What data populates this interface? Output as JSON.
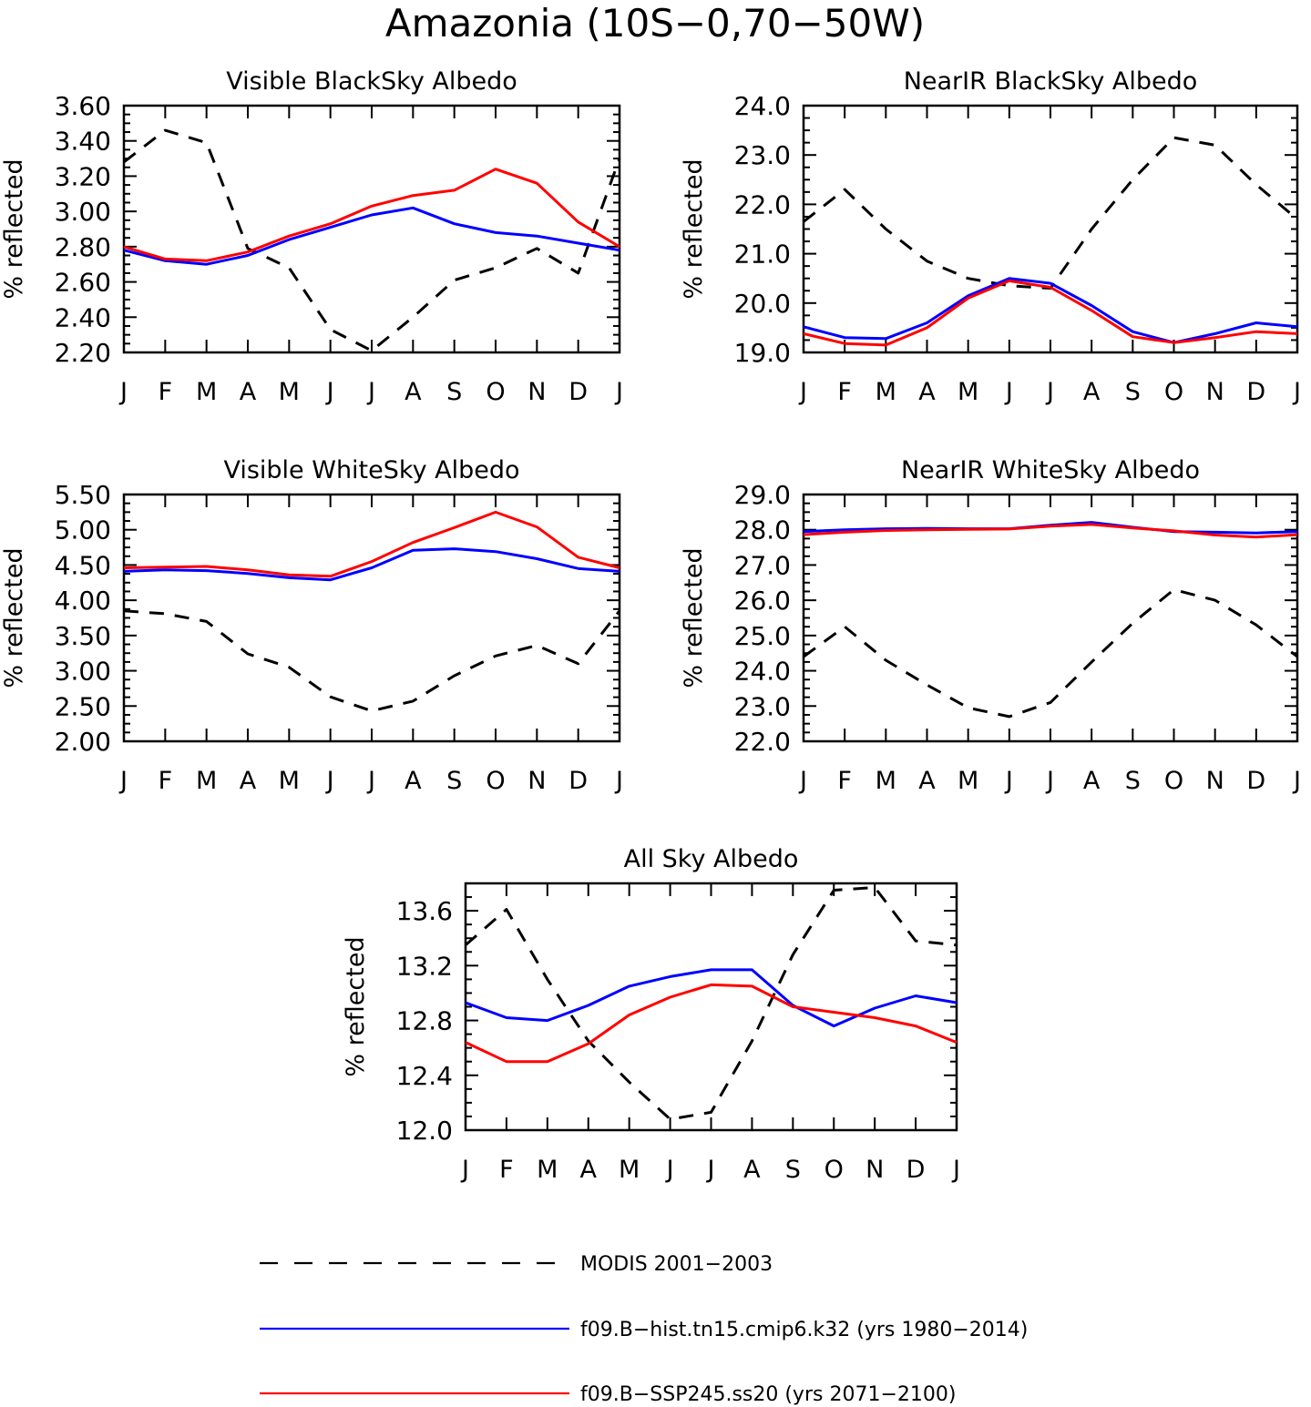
{
  "figure": {
    "title": "Amazonia (10S−0,70−50W)"
  },
  "legend": [
    {
      "label": "MODIS 2001−2003",
      "color": "#000000",
      "dashed": true
    },
    {
      "label": "f09.B−hist.tn15.cmip6.k32 (yrs 1980−2014)",
      "color": "#0000ff",
      "dashed": false
    },
    {
      "label": "f09.B−SSP245.ss20 (yrs 2071−2100)",
      "color": "#ff0000",
      "dashed": false
    }
  ],
  "chart_data": [
    {
      "type": "line",
      "title": "Visible BlackSky Albedo",
      "ylabel": "% reflected",
      "ylim": [
        2.2,
        3.6
      ],
      "yticks": [
        "2.20",
        "2.40",
        "2.60",
        "2.80",
        "3.00",
        "3.20",
        "3.40",
        "3.60"
      ],
      "categories": [
        "J",
        "F",
        "M",
        "A",
        "M",
        "J",
        "J",
        "A",
        "S",
        "O",
        "N",
        "D",
        "J"
      ],
      "series": [
        {
          "name": "MODIS 2001−2003",
          "values": [
            3.28,
            3.46,
            3.39,
            2.79,
            2.68,
            2.33,
            2.21,
            2.4,
            2.61,
            2.68,
            2.79,
            2.65,
            3.3
          ]
        },
        {
          "name": "f09.B−hist.tn15.cmip6.k32 (yrs 1980−2014)",
          "values": [
            2.78,
            2.72,
            2.7,
            2.75,
            2.84,
            2.91,
            2.98,
            3.02,
            2.93,
            2.88,
            2.86,
            2.82,
            2.78
          ]
        },
        {
          "name": "f09.B−SSP245.ss20 (yrs 2071−2100)",
          "values": [
            2.8,
            2.73,
            2.72,
            2.77,
            2.86,
            2.93,
            3.03,
            3.09,
            3.12,
            3.24,
            3.16,
            2.94,
            2.8
          ]
        }
      ]
    },
    {
      "type": "line",
      "title": "NearIR BlackSky Albedo",
      "ylabel": "% reflected",
      "ylim": [
        19.0,
        24.0
      ],
      "yticks": [
        "19.0",
        "20.0",
        "21.0",
        "22.0",
        "23.0",
        "24.0"
      ],
      "categories": [
        "J",
        "F",
        "M",
        "A",
        "M",
        "J",
        "J",
        "A",
        "S",
        "O",
        "N",
        "D",
        "J"
      ],
      "series": [
        {
          "name": "MODIS 2001−2003",
          "values": [
            21.65,
            22.3,
            21.5,
            20.85,
            20.5,
            20.35,
            20.3,
            21.5,
            22.5,
            23.35,
            23.2,
            22.4,
            21.7
          ]
        },
        {
          "name": "f09.B−hist.tn15.cmip6.k32 (yrs 1980−2014)",
          "values": [
            19.52,
            19.3,
            19.28,
            19.6,
            20.15,
            20.5,
            20.4,
            19.95,
            19.42,
            19.2,
            19.38,
            19.6,
            19.52
          ]
        },
        {
          "name": "f09.B−SSP245.ss20 (yrs 2071−2100)",
          "values": [
            19.38,
            19.18,
            19.15,
            19.5,
            20.1,
            20.45,
            20.32,
            19.85,
            19.32,
            19.2,
            19.3,
            19.42,
            19.38
          ]
        }
      ]
    },
    {
      "type": "line",
      "title": "Visible WhiteSky Albedo",
      "ylabel": "% reflected",
      "ylim": [
        2.0,
        5.5
      ],
      "yticks": [
        "2.00",
        "2.50",
        "3.00",
        "3.50",
        "4.00",
        "4.50",
        "5.00",
        "5.50"
      ],
      "categories": [
        "J",
        "F",
        "M",
        "A",
        "M",
        "J",
        "J",
        "A",
        "S",
        "O",
        "N",
        "D",
        "J"
      ],
      "series": [
        {
          "name": "MODIS 2001−2003",
          "values": [
            3.85,
            3.81,
            3.7,
            3.24,
            3.05,
            2.63,
            2.43,
            2.57,
            2.93,
            3.21,
            3.36,
            3.1,
            3.85
          ]
        },
        {
          "name": "f09.B−hist.tn15.cmip6.k32 (yrs 1980−2014)",
          "values": [
            4.41,
            4.43,
            4.42,
            4.38,
            4.32,
            4.29,
            4.46,
            4.71,
            4.73,
            4.69,
            4.59,
            4.45,
            4.41
          ]
        },
        {
          "name": "f09.B−SSP245.ss20 (yrs 2071−2100)",
          "values": [
            4.46,
            4.47,
            4.48,
            4.43,
            4.36,
            4.34,
            4.55,
            4.82,
            5.03,
            5.25,
            5.04,
            4.61,
            4.46
          ]
        }
      ]
    },
    {
      "type": "line",
      "title": "NearIR WhiteSky Albedo",
      "ylabel": "% reflected",
      "ylim": [
        22.0,
        29.0
      ],
      "yticks": [
        "22.0",
        "23.0",
        "24.0",
        "25.0",
        "26.0",
        "27.0",
        "28.0",
        "29.0"
      ],
      "categories": [
        "J",
        "F",
        "M",
        "A",
        "M",
        "J",
        "J",
        "A",
        "S",
        "O",
        "N",
        "D",
        "J"
      ],
      "series": [
        {
          "name": "MODIS 2001−2003",
          "values": [
            24.4,
            25.25,
            24.3,
            23.6,
            22.95,
            22.7,
            23.1,
            24.25,
            25.35,
            26.3,
            26.0,
            25.3,
            24.4
          ]
        },
        {
          "name": "f09.B−hist.tn15.cmip6.k32 (yrs 1980−2014)",
          "values": [
            27.95,
            28.0,
            28.03,
            28.04,
            28.03,
            28.03,
            28.13,
            28.21,
            28.07,
            27.95,
            27.93,
            27.91,
            27.95
          ]
        },
        {
          "name": "f09.B−SSP245.ss20 (yrs 2071−2100)",
          "values": [
            27.86,
            27.93,
            27.98,
            28.0,
            28.01,
            28.02,
            28.1,
            28.15,
            28.05,
            27.97,
            27.85,
            27.79,
            27.86
          ]
        }
      ]
    },
    {
      "type": "line",
      "title": "All Sky Albedo",
      "ylabel": "% reflected",
      "ylim": [
        12.0,
        13.8
      ],
      "yticks": [
        "12.0",
        "12.4",
        "12.8",
        "13.2",
        "13.6"
      ],
      "categories": [
        "J",
        "F",
        "M",
        "A",
        "M",
        "J",
        "J",
        "A",
        "S",
        "O",
        "N",
        "D",
        "J"
      ],
      "series": [
        {
          "name": "MODIS 2001−2003",
          "values": [
            13.35,
            13.61,
            13.1,
            12.65,
            12.35,
            12.08,
            12.13,
            12.65,
            13.28,
            13.75,
            13.77,
            13.38,
            13.35
          ]
        },
        {
          "name": "f09.B−hist.tn15.cmip6.k32 (yrs 1980−2014)",
          "values": [
            12.93,
            12.82,
            12.8,
            12.91,
            13.05,
            13.12,
            13.17,
            13.17,
            12.91,
            12.76,
            12.89,
            12.98,
            12.93
          ]
        },
        {
          "name": "f09.B−SSP245.ss20 (yrs 2071−2100)",
          "values": [
            12.64,
            12.5,
            12.5,
            12.63,
            12.84,
            12.97,
            13.06,
            13.05,
            12.9,
            12.86,
            12.82,
            12.76,
            12.64
          ]
        }
      ]
    }
  ]
}
